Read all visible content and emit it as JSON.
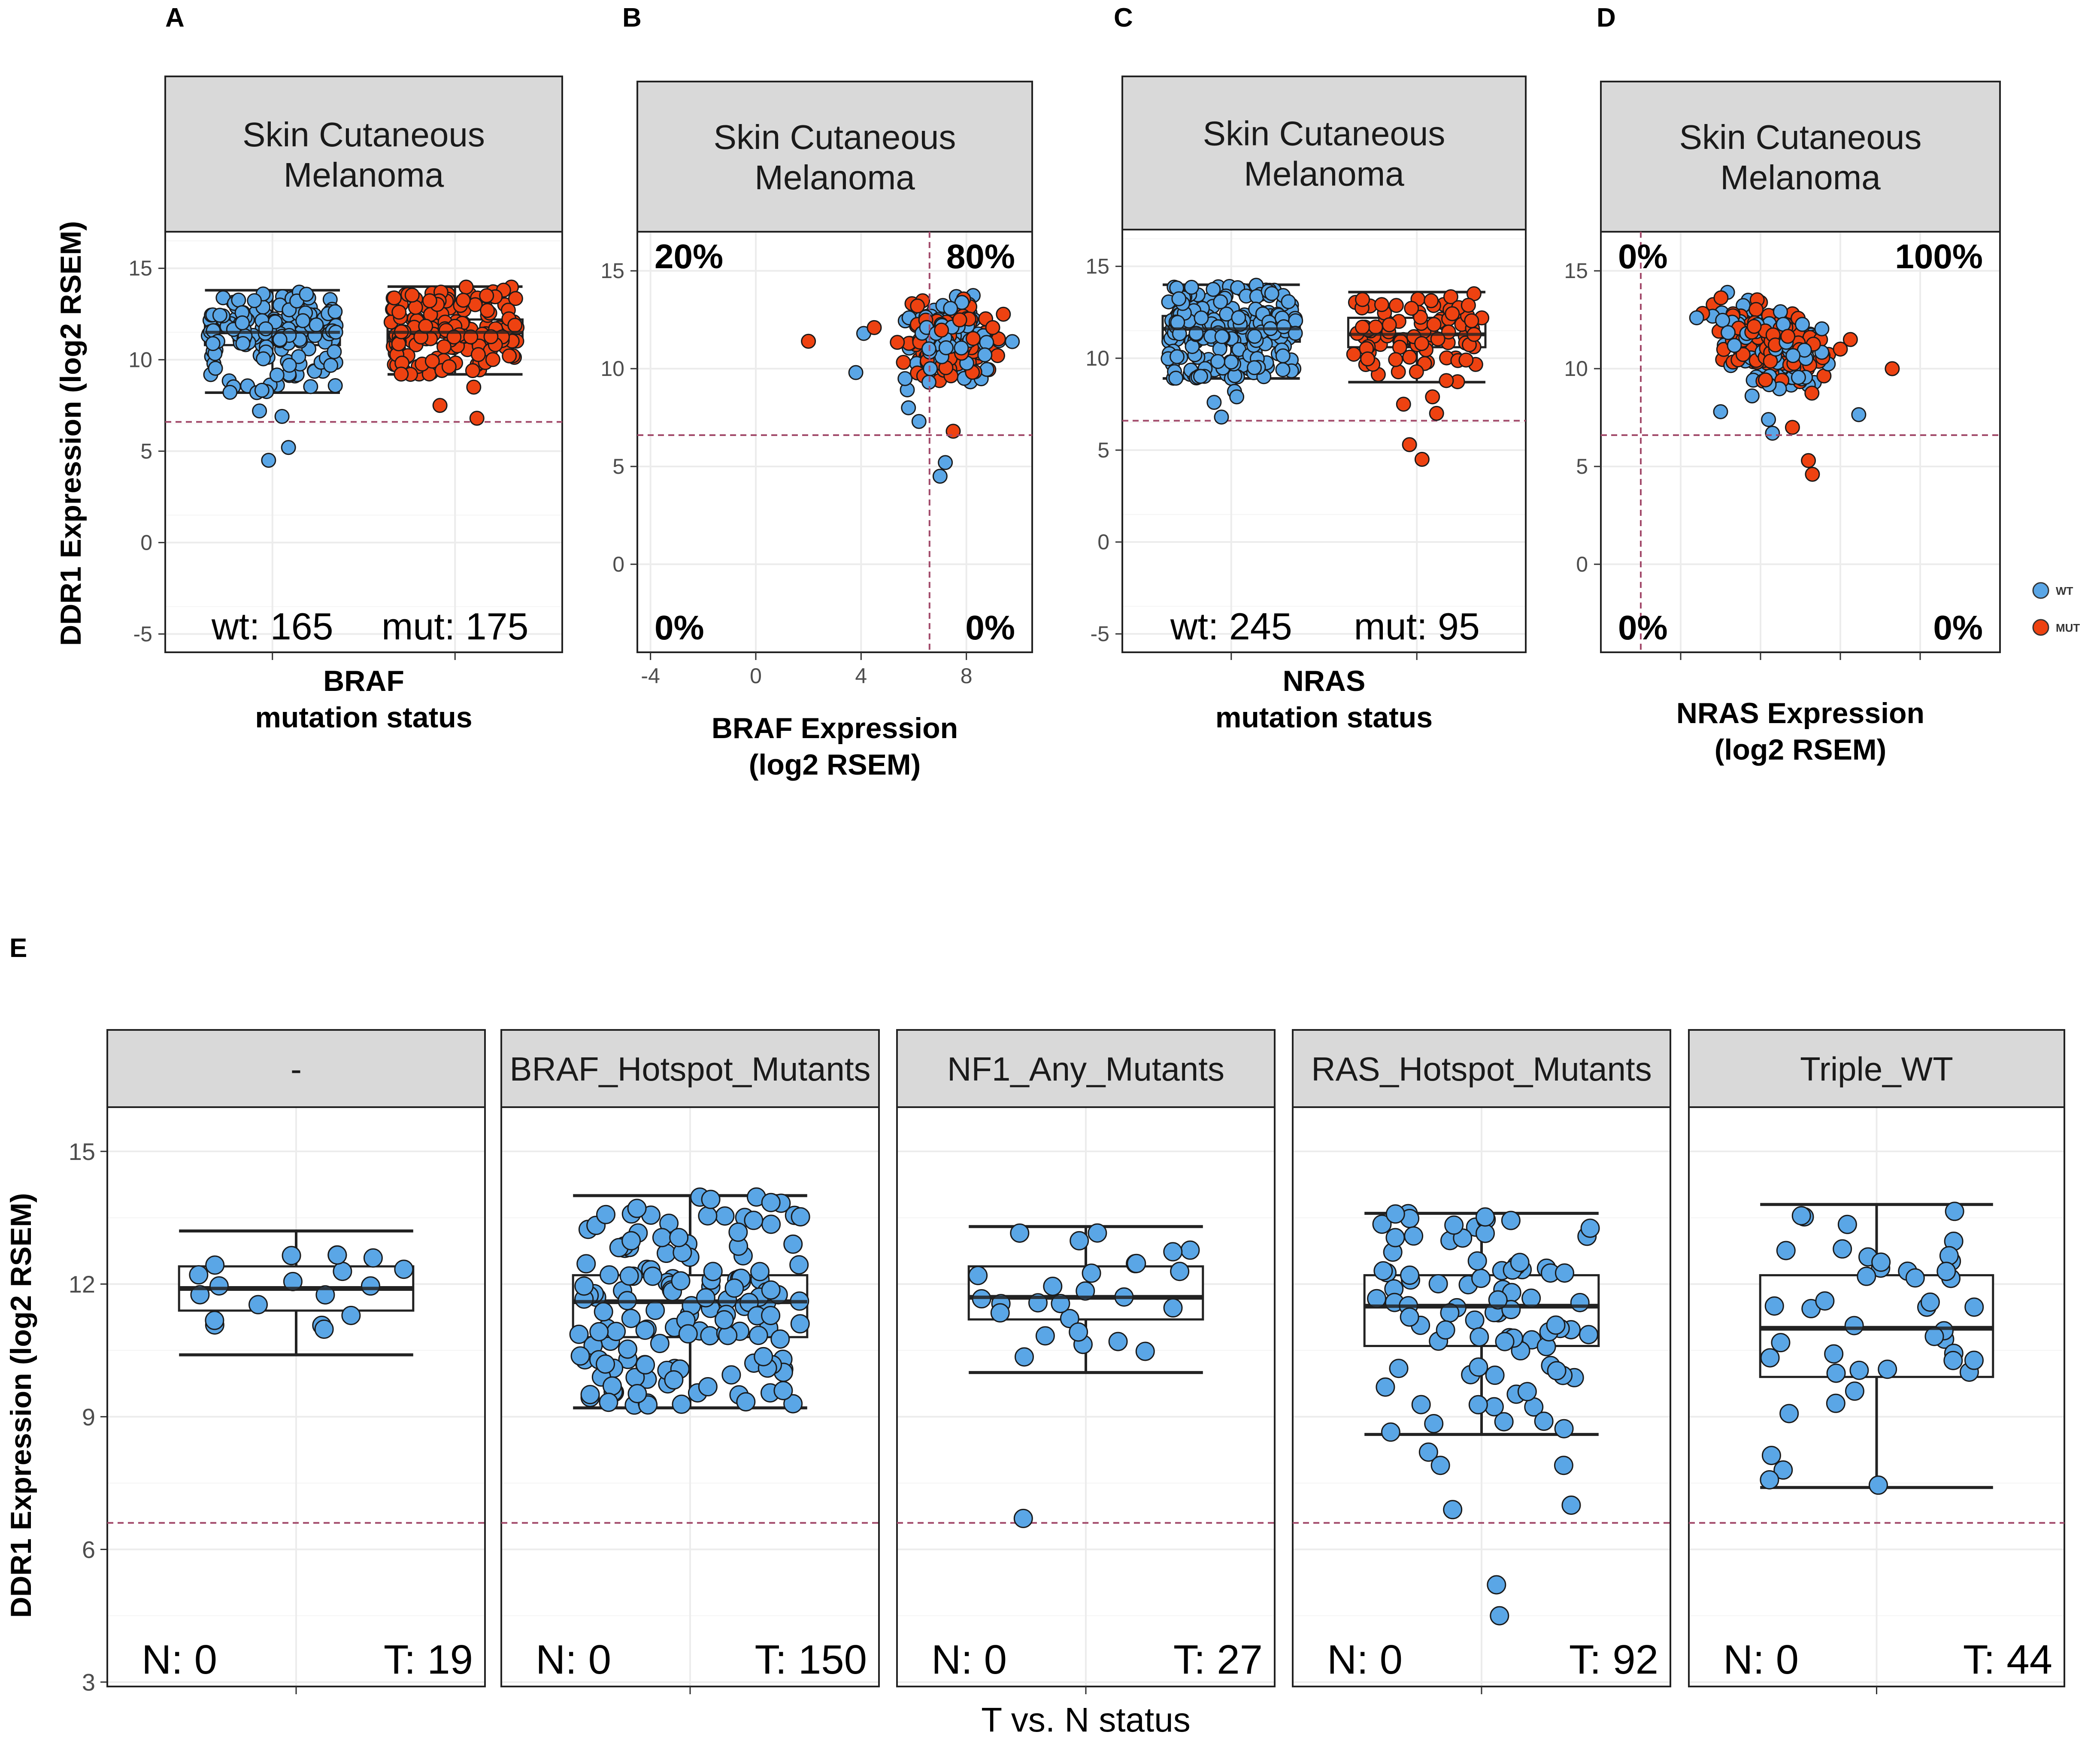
{
  "figure": {
    "panel_letters": [
      "A",
      "B",
      "C",
      "D",
      "E"
    ],
    "shared_ylabel": "DDR1 Expression (log2 RSEM)",
    "legend": {
      "wt": "WT",
      "mut": "MUT"
    },
    "colors": {
      "wt": "#5aa6e6",
      "mut": "#ee4211",
      "threshold": "#a24a6a",
      "strip_bg": "#d9d9d9",
      "grid": "#ececec"
    }
  },
  "chart_data": [
    {
      "id": "A",
      "type": "box-jitter",
      "title": "Skin Cutaneous Melanoma",
      "title_lines": [
        "Skin Cutaneous",
        "Melanoma"
      ],
      "xlabel_lines": [
        "BRAF",
        "mutation status"
      ],
      "ylabel": "DDR1 Expression (log2 RSEM)",
      "ylim": [
        -6,
        17
      ],
      "yticks": [
        -5,
        0,
        5,
        10,
        15
      ],
      "threshold": 6.6,
      "groups": [
        {
          "name": "wt",
          "count_label": "wt: 165",
          "n": 165,
          "color": "wt",
          "q1": 10.8,
          "median": 11.5,
          "q3": 12.3,
          "whisker_low": 8.2,
          "whisker_high": 13.8,
          "outliers": [
            7.2,
            5.2,
            4.5,
            6.9
          ]
        },
        {
          "name": "mut",
          "count_label": "mut: 175",
          "n": 175,
          "color": "mut",
          "q1": 10.9,
          "median": 11.5,
          "q3": 12.2,
          "whisker_low": 9.2,
          "whisker_high": 14.0,
          "outliers": [
            8.5,
            7.5,
            6.8
          ]
        }
      ]
    },
    {
      "id": "B",
      "type": "scatter",
      "title": "Skin Cutaneous Melanoma",
      "title_lines": [
        "Skin Cutaneous",
        "Melanoma"
      ],
      "xlabel_lines": [
        "BRAF Expression",
        "(log2 RSEM)"
      ],
      "ylabel": "DDR1 Expression (log2 RSEM)",
      "xlim": [
        -4.5,
        10.5
      ],
      "ylim": [
        -4.5,
        17
      ],
      "xticks": [
        -4,
        0,
        4,
        8
      ],
      "yticks": [
        0,
        5,
        10,
        15
      ],
      "threshold_x": 6.6,
      "threshold_y": 6.6,
      "quadrant_labels": {
        "top_left": "20%",
        "top_right": "80%",
        "bottom_left": "0%",
        "bottom_right": "0%"
      },
      "cloud_summary": {
        "x_center": 7.3,
        "x_spread": 1.0,
        "y_center": 11.5,
        "y_spread": 1.2
      },
      "outliers": [
        {
          "x": 2.0,
          "y": 11.4,
          "group": "mut"
        },
        {
          "x": 3.8,
          "y": 9.8,
          "group": "wt"
        },
        {
          "x": 4.1,
          "y": 11.8,
          "group": "wt"
        },
        {
          "x": 4.5,
          "y": 12.1,
          "group": "mut"
        },
        {
          "x": 5.8,
          "y": 8.0,
          "group": "wt"
        },
        {
          "x": 6.2,
          "y": 7.3,
          "group": "wt"
        },
        {
          "x": 7.2,
          "y": 5.2,
          "group": "wt"
        },
        {
          "x": 7.0,
          "y": 4.5,
          "group": "wt"
        },
        {
          "x": 7.5,
          "y": 6.8,
          "group": "mut"
        },
        {
          "x": 9.0,
          "y": 12.1,
          "group": "mut"
        }
      ]
    },
    {
      "id": "C",
      "type": "box-jitter",
      "title": "Skin Cutaneous Melanoma",
      "title_lines": [
        "Skin Cutaneous",
        "Melanoma"
      ],
      "xlabel_lines": [
        "NRAS",
        "mutation status"
      ],
      "ylabel": "DDR1 Expression (log2 RSEM)",
      "ylim": [
        -6,
        17
      ],
      "yticks": [
        -5,
        0,
        5,
        10,
        15
      ],
      "threshold": 6.6,
      "groups": [
        {
          "name": "wt",
          "count_label": "wt: 245",
          "n": 245,
          "color": "wt",
          "q1": 10.9,
          "median": 11.6,
          "q3": 12.3,
          "whisker_low": 8.9,
          "whisker_high": 14.0,
          "outliers": [
            8.2,
            7.9,
            6.8,
            7.6
          ]
        },
        {
          "name": "mut",
          "count_label": "mut: 95",
          "n": 95,
          "color": "mut",
          "q1": 10.6,
          "median": 11.3,
          "q3": 12.2,
          "whisker_low": 8.7,
          "whisker_high": 13.6,
          "outliers": [
            7.9,
            7.0,
            5.3,
            4.5,
            7.5
          ]
        }
      ]
    },
    {
      "id": "D",
      "type": "scatter",
      "title": "Skin Cutaneous Melanoma",
      "title_lines": [
        "Skin Cutaneous",
        "Melanoma"
      ],
      "xlabel_lines": [
        "NRAS Expression",
        "(log2 RSEM)"
      ],
      "ylabel": "DDR1 Expression (log2 RSEM)",
      "xlim": [
        0,
        10
      ],
      "ylim": [
        -4.5,
        17
      ],
      "yticks": [
        0,
        5,
        10,
        15
      ],
      "threshold_x": 1.0,
      "threshold_y": 6.6,
      "quadrant_labels": {
        "top_left": "0%",
        "top_right": "100%",
        "bottom_left": "0%",
        "bottom_right": "0%"
      },
      "cloud_summary": {
        "x_center": 4.3,
        "x_spread": 0.9,
        "y_center": 11.3,
        "y_spread": 1.2
      },
      "outliers": [
        {
          "x": 2.4,
          "y": 12.6,
          "group": "wt"
        },
        {
          "x": 3.0,
          "y": 7.8,
          "group": "wt"
        },
        {
          "x": 4.2,
          "y": 7.4,
          "group": "wt"
        },
        {
          "x": 4.3,
          "y": 6.7,
          "group": "wt"
        },
        {
          "x": 5.2,
          "y": 5.3,
          "group": "mut"
        },
        {
          "x": 5.3,
          "y": 4.6,
          "group": "mut"
        },
        {
          "x": 4.8,
          "y": 7.0,
          "group": "mut"
        },
        {
          "x": 6.0,
          "y": 11.0,
          "group": "mut"
        },
        {
          "x": 7.3,
          "y": 10.0,
          "group": "mut"
        }
      ]
    },
    {
      "id": "E",
      "type": "box-jitter-facets",
      "xlabel": "T vs. N status",
      "ylabel": "DDR1 Expression (log2 RSEM)",
      "ylim": [
        2.9,
        16.0
      ],
      "yticks": [
        3,
        6,
        9,
        12,
        15
      ],
      "threshold": 6.6,
      "facets": [
        {
          "title": "-",
          "n_label": "N: 0",
          "t_label": "T: 19",
          "n": 19,
          "q1": 11.4,
          "median": 11.9,
          "q3": 12.4,
          "whisker_low": 10.4,
          "whisker_high": 13.2,
          "outliers": []
        },
        {
          "title": "BRAF_Hotspot_Mutants",
          "n_label": "N: 0",
          "t_label": "T: 150",
          "n": 150,
          "q1": 10.8,
          "median": 11.6,
          "q3": 12.2,
          "whisker_low": 9.2,
          "whisker_high": 14.0,
          "outliers": []
        },
        {
          "title": "NF1_Any_Mutants",
          "n_label": "N: 0",
          "t_label": "T: 27",
          "n": 27,
          "q1": 11.2,
          "median": 11.7,
          "q3": 12.4,
          "whisker_low": 10.0,
          "whisker_high": 13.3,
          "outliers": [
            6.7
          ]
        },
        {
          "title": "RAS_Hotspot_Mutants",
          "n_label": "N: 0",
          "t_label": "T: 92",
          "n": 92,
          "q1": 10.6,
          "median": 11.5,
          "q3": 12.2,
          "whisker_low": 8.6,
          "whisker_high": 13.6,
          "outliers": [
            8.2,
            7.9,
            7.9,
            6.9,
            7.0,
            5.2,
            4.5
          ]
        },
        {
          "title": "Triple_WT",
          "n_label": "N: 0",
          "t_label": "T: 44",
          "n": 44,
          "q1": 9.9,
          "median": 11.0,
          "q3": 12.2,
          "whisker_low": 7.4,
          "whisker_high": 13.8,
          "outliers": []
        }
      ]
    }
  ]
}
